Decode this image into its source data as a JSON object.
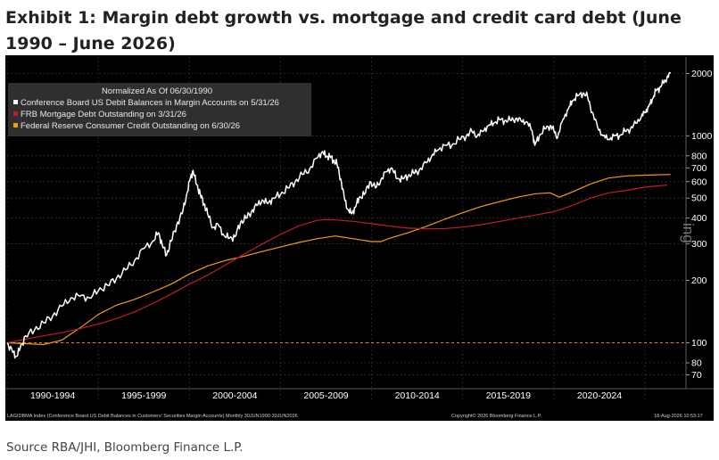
{
  "page": {
    "title": "Exhibit 1: Margin debt growth vs. mortgage and credit card debt (June 1990 – June 2026)",
    "source": "Source RBA/JHI, Bloomberg Finance L.P."
  },
  "chart_data": {
    "type": "line",
    "title": "Exhibit 1: Margin debt growth vs. mortgage and credit card debt (June 1990 – June 2026)",
    "legend_title": "Normalized As Of 06/30/1990",
    "legend_position": "top-left",
    "y_scale": "log",
    "ylim": [
      60,
      2400
    ],
    "xlim": [
      1990.0,
      2027.2
    ],
    "y_ticks": [
      70,
      80,
      100,
      200,
      300,
      400,
      500,
      600,
      700,
      800,
      1000,
      2000
    ],
    "y_tick_labels": [
      "70",
      "80",
      "100",
      "200",
      "300",
      "400",
      "500",
      "600",
      "700",
      "800",
      "1000",
      "2000"
    ],
    "x_bands": [
      {
        "label": "1990-1994",
        "start": 1990,
        "end": 1995
      },
      {
        "label": "1995-1999",
        "start": 1995,
        "end": 2000
      },
      {
        "label": "2000-2004",
        "start": 2000,
        "end": 2005
      },
      {
        "label": "2005-2009",
        "start": 2005,
        "end": 2010
      },
      {
        "label": "2010-2014",
        "start": 2010,
        "end": 2015
      },
      {
        "label": "2015-2019",
        "start": 2015,
        "end": 2020
      },
      {
        "label": "2020-2024",
        "start": 2020,
        "end": 2025
      }
    ],
    "grid": true,
    "colors": {
      "background": "#000000",
      "margin": "#ffffff",
      "mortgage": "#c01c2c",
      "consumer": "#f39c12",
      "reference": "#f39c12"
    },
    "series": [
      {
        "name": "Conference Board US Debit Balances in Margin Accounts on 5/31/26",
        "color": "#ffffff",
        "x": [
          1990.0,
          1990.3,
          1990.5,
          1990.7,
          1991.0,
          1991.5,
          1992.0,
          1992.5,
          1993.0,
          1993.5,
          1994.0,
          1994.5,
          1995.0,
          1995.5,
          1996.0,
          1996.5,
          1997.0,
          1997.5,
          1998.0,
          1998.3,
          1998.5,
          1998.75,
          1999.0,
          1999.3,
          1999.6,
          1999.85,
          2000.05,
          2000.2,
          2000.4,
          2000.6,
          2000.8,
          2001.0,
          2001.3,
          2001.6,
          2001.9,
          2002.2,
          2002.5,
          2002.8,
          2003.1,
          2003.4,
          2003.7,
          2004.0,
          2004.3,
          2004.6,
          2005.0,
          2005.4,
          2005.8,
          2006.2,
          2006.6,
          2007.0,
          2007.3,
          2007.5,
          2007.7,
          2007.9,
          2008.1,
          2008.3,
          2008.5,
          2008.7,
          2008.9,
          2009.1,
          2009.3,
          2009.6,
          2009.9,
          2010.2,
          2010.5,
          2010.8,
          2011.1,
          2011.4,
          2011.7,
          2012.0,
          2012.3,
          2012.6,
          2013.0,
          2013.3,
          2013.6,
          2014.0,
          2014.4,
          2014.8,
          2015.2,
          2015.5,
          2015.8,
          2016.1,
          2016.4,
          2016.7,
          2017.0,
          2017.3,
          2017.6,
          2017.9,
          2018.2,
          2018.5,
          2018.8,
          2018.95,
          2019.2,
          2019.5,
          2019.8,
          2020.0,
          2020.2,
          2020.5,
          2020.8,
          2021.0,
          2021.3,
          2021.6,
          2021.85,
          2022.1,
          2022.4,
          2022.7,
          2023.0,
          2023.3,
          2023.6,
          2023.9,
          2024.2,
          2024.5,
          2024.8,
          2025.0,
          2025.2,
          2025.4,
          2025.6,
          2025.8,
          2026.0,
          2026.2,
          2026.4
        ],
        "values": [
          100,
          90,
          86,
          93,
          108,
          115,
          125,
          135,
          150,
          165,
          168,
          165,
          178,
          190,
          205,
          225,
          250,
          285,
          310,
          340,
          300,
          265,
          310,
          370,
          420,
          520,
          620,
          680,
          580,
          520,
          470,
          420,
          360,
          370,
          330,
          320,
          325,
          380,
          400,
          430,
          460,
          490,
          470,
          500,
          520,
          560,
          600,
          650,
          690,
          780,
          840,
          790,
          800,
          760,
          730,
          620,
          500,
          440,
          420,
          450,
          500,
          520,
          600,
          560,
          610,
          670,
          700,
          620,
          620,
          640,
          660,
          680,
          740,
          800,
          850,
          900,
          900,
          960,
          1000,
          1050,
          1000,
          1050,
          1120,
          1150,
          1200,
          1180,
          1190,
          1210,
          1180,
          1170,
          1060,
          900,
          1000,
          1080,
          1120,
          1060,
          980,
          1200,
          1350,
          1470,
          1560,
          1610,
          1540,
          1300,
          1100,
          1000,
          960,
          1000,
          1000,
          1050,
          1080,
          1150,
          1240,
          1300,
          1380,
          1500,
          1650,
          1700,
          1800,
          1900,
          2000
        ]
      },
      {
        "name": "FRB Mortgage Debt Outstanding on 3/31/26",
        "color": "#c01c2c",
        "x": [
          1990.0,
          1991,
          1992,
          1993,
          1994,
          1995,
          1996,
          1997,
          1998,
          1999,
          2000,
          2001,
          2002,
          2003,
          2004,
          2005,
          2006,
          2007,
          2007.5,
          2008,
          2009,
          2010,
          2011,
          2012,
          2013,
          2014,
          2015,
          2016,
          2017,
          2018,
          2019,
          2020,
          2021,
          2022,
          2023,
          2024,
          2025,
          2026.2
        ],
        "values": [
          100,
          104,
          108,
          112,
          117,
          123,
          131,
          141,
          155,
          172,
          192,
          212,
          238,
          268,
          300,
          334,
          367,
          390,
          394,
          392,
          386,
          376,
          366,
          358,
          355,
          356,
          362,
          372,
          385,
          400,
          414,
          430,
          460,
          500,
          530,
          545,
          565,
          578
        ]
      },
      {
        "name": "Federal Reserve Consumer Credit Outstanding on 6/30/26",
        "color": "#f39c12",
        "x": [
          1990.0,
          1991,
          1992,
          1993,
          1994,
          1995,
          1996,
          1997,
          1998,
          1999,
          2000,
          2001,
          2002,
          2003,
          2004,
          2005,
          2006,
          2007,
          2008,
          2009,
          2010,
          2010.5,
          2011,
          2012,
          2013,
          2014,
          2015,
          2016,
          2017,
          2018,
          2019,
          2019.8,
          2020.3,
          2021,
          2022,
          2023,
          2024,
          2025,
          2026.4
        ],
        "values": [
          100,
          99,
          98,
          103,
          118,
          137,
          152,
          162,
          176,
          192,
          215,
          235,
          250,
          262,
          276,
          290,
          305,
          318,
          328,
          318,
          308,
          308,
          320,
          340,
          365,
          395,
          425,
          455,
          480,
          505,
          525,
          530,
          505,
          535,
          585,
          625,
          640,
          645,
          650
        ]
      }
    ],
    "reference_lines": [
      100
    ],
    "footer": {
      "left": "LAGIDBMA Index (Conference Board US Debit Balances in Customers' Securities Margin Accounts) Monthly 30JUN1990-30JUN2026",
      "center": "Copyright© 2026 Bloomberg Finance L.P.",
      "right": "18-Aug-2026 10:53:17"
    },
    "watermark": "ing"
  }
}
